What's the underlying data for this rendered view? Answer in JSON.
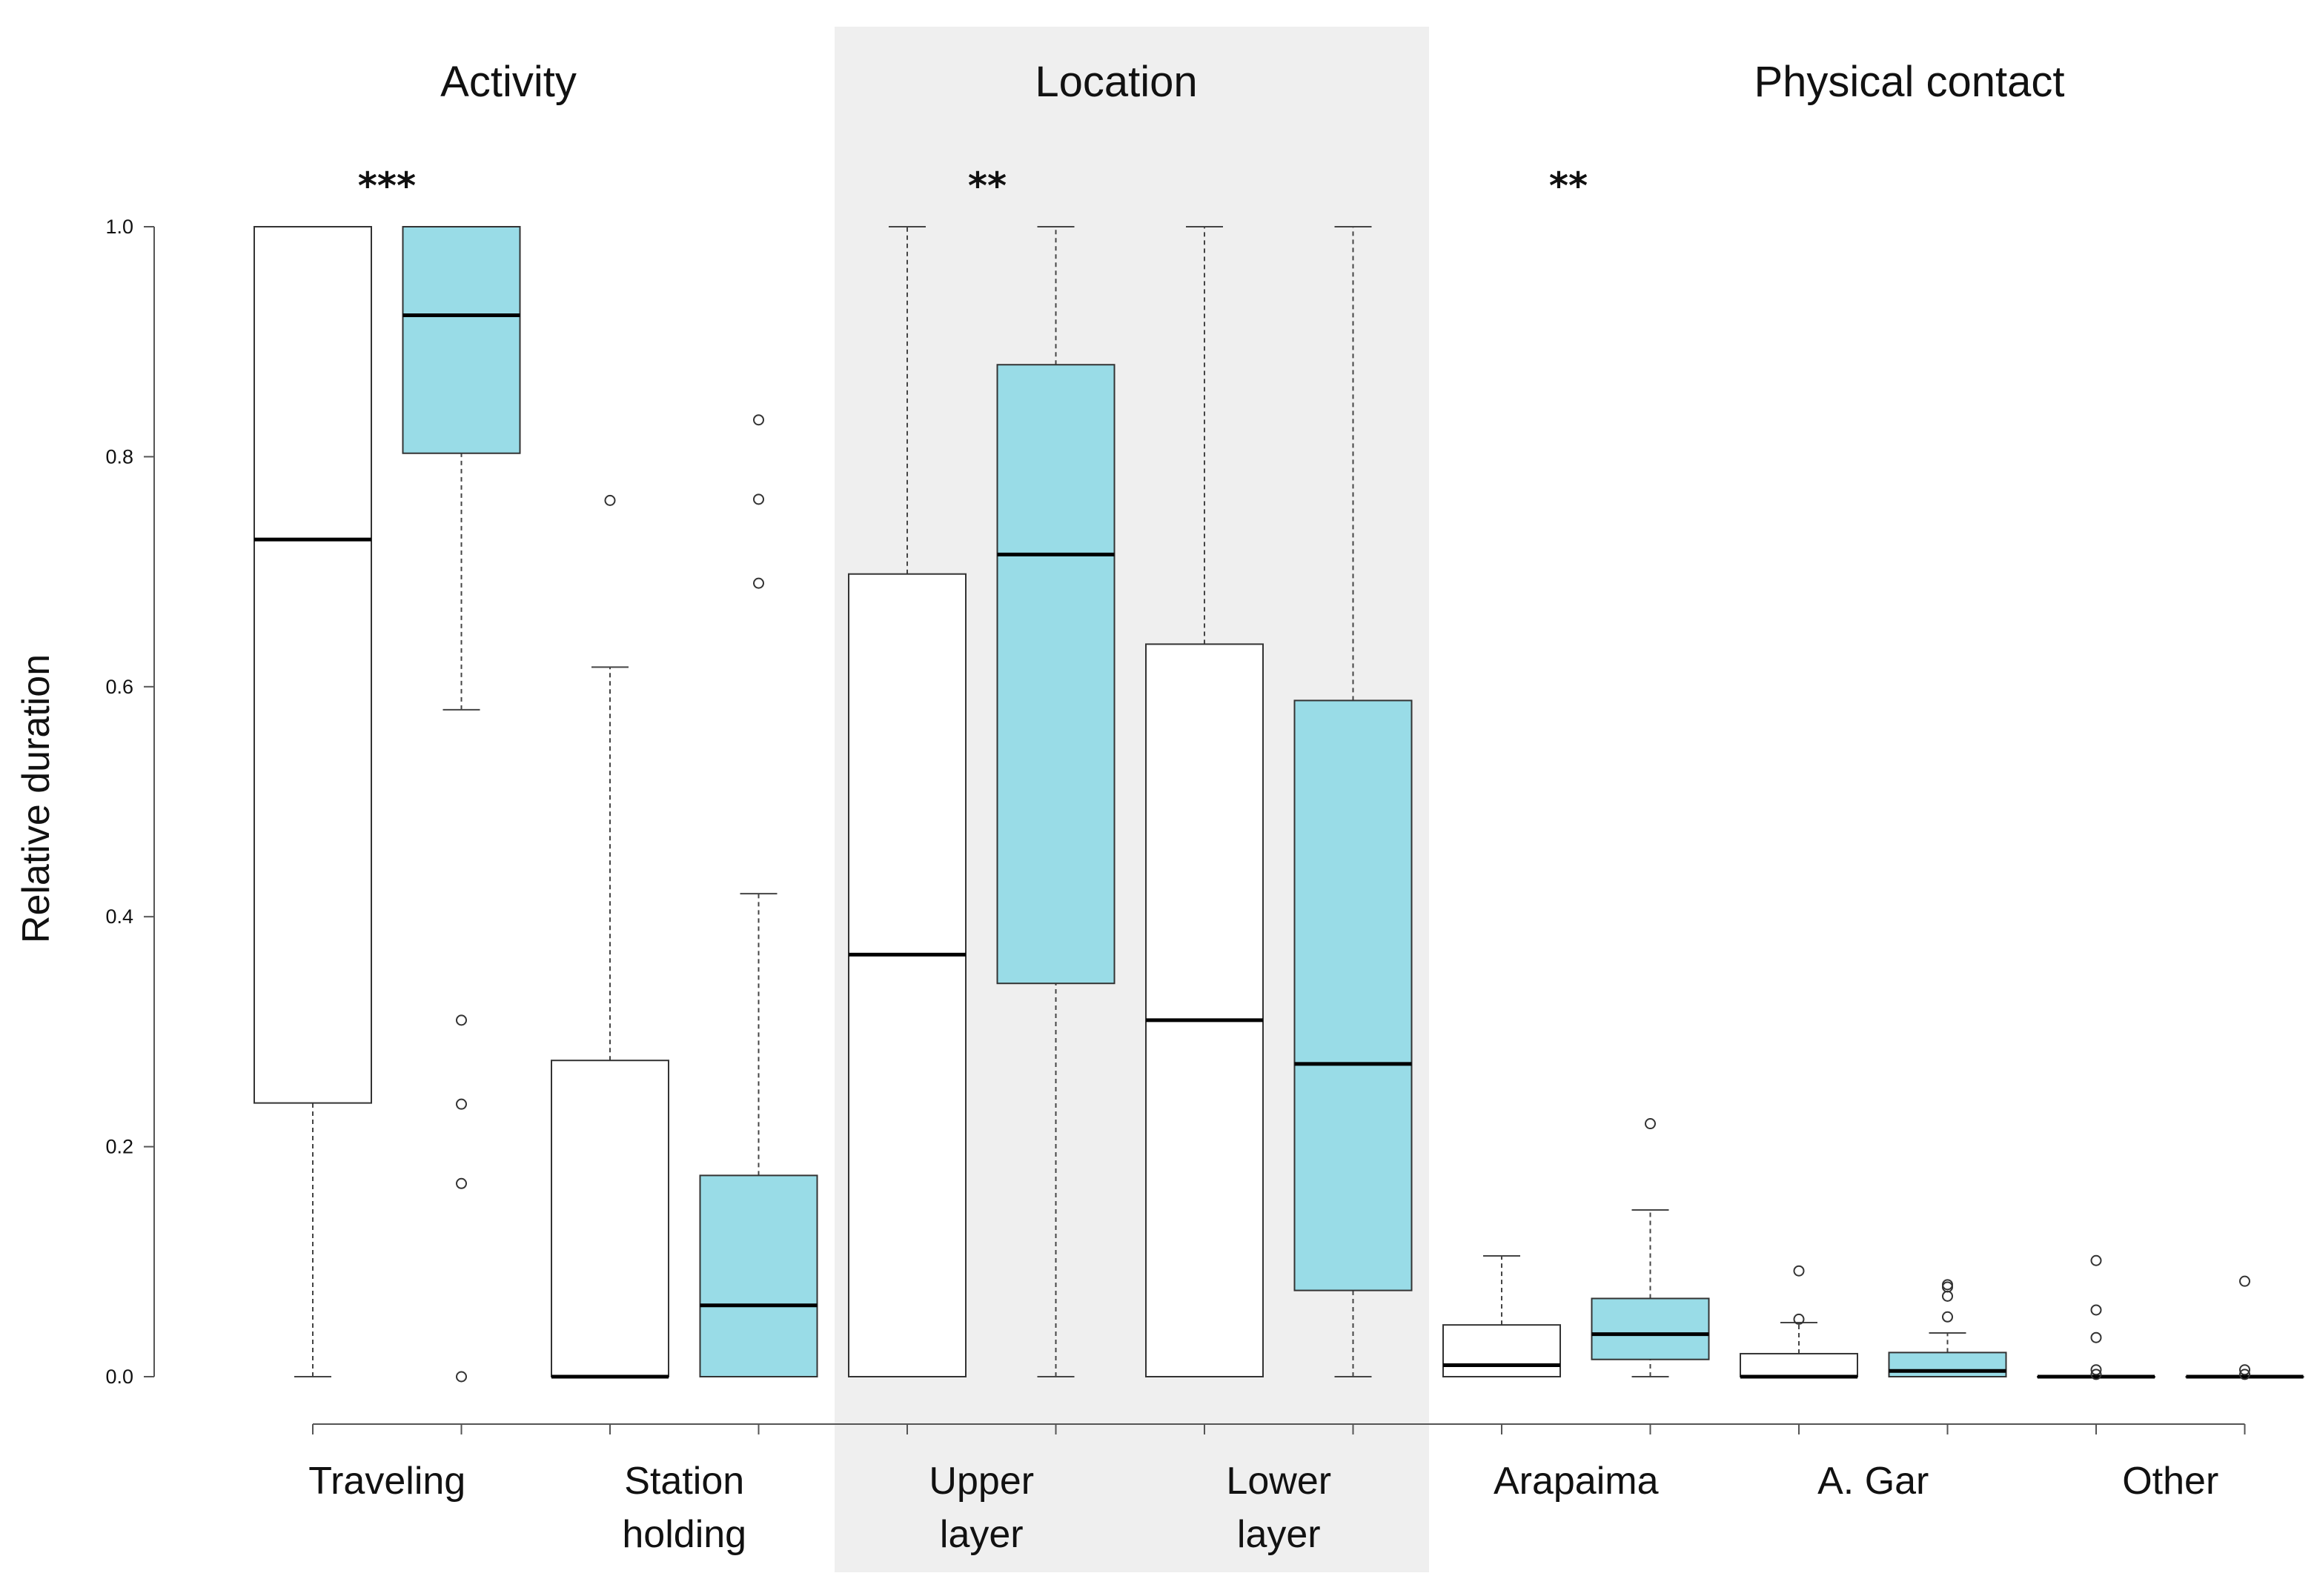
{
  "chart_data": {
    "type": "box",
    "ylabel": "Relative duration",
    "ylim": [
      0,
      1.0
    ],
    "yticks": [
      "0.0",
      "0.2",
      "0.4",
      "0.6",
      "0.8",
      "1.0"
    ],
    "sections": [
      {
        "title": "Activity",
        "significance": "***",
        "highlighted": false
      },
      {
        "title": "Location",
        "significance": "**",
        "highlighted": true
      },
      {
        "title": "Physical contact",
        "significance": "**",
        "highlighted": false
      }
    ],
    "categories": [
      {
        "lines": [
          "Traveling"
        ]
      },
      {
        "lines": [
          "Station",
          "holding"
        ]
      },
      {
        "lines": [
          "Upper",
          "layer"
        ]
      },
      {
        "lines": [
          "Lower",
          "layer"
        ]
      },
      {
        "lines": [
          "Arapaima"
        ]
      },
      {
        "lines": [
          "A. Gar"
        ]
      },
      {
        "lines": [
          "Other"
        ]
      }
    ],
    "group_colors": [
      "#ffffff",
      "#99dce7"
    ],
    "boxes": [
      {
        "category": 0,
        "group": 0,
        "min": 0.0,
        "q1": 0.238,
        "median": 0.728,
        "q3": 1.0,
        "max": 1.0,
        "outliers": []
      },
      {
        "category": 0,
        "group": 1,
        "min": 0.58,
        "q1": 0.803,
        "median": 0.923,
        "q3": 1.0,
        "max": 1.0,
        "outliers": [
          0.31,
          0.237,
          0.168,
          0.0
        ]
      },
      {
        "category": 1,
        "group": 0,
        "min": 0.0,
        "q1": 0.0,
        "median": 0.0,
        "q3": 0.275,
        "max": 0.617,
        "outliers": [
          0.762
        ]
      },
      {
        "category": 1,
        "group": 1,
        "min": 0.0,
        "q1": 0.0,
        "median": 0.062,
        "q3": 0.175,
        "max": 0.42,
        "outliers": [
          0.69,
          0.763,
          0.832
        ]
      },
      {
        "category": 2,
        "group": 0,
        "min": 0.0,
        "q1": 0.0,
        "median": 0.367,
        "q3": 0.698,
        "max": 1.0,
        "outliers": []
      },
      {
        "category": 2,
        "group": 1,
        "min": 0.0,
        "q1": 0.342,
        "median": 0.715,
        "q3": 0.88,
        "max": 1.0,
        "outliers": []
      },
      {
        "category": 3,
        "group": 0,
        "min": 0.0,
        "q1": 0.0,
        "median": 0.31,
        "q3": 0.637,
        "max": 1.0,
        "outliers": []
      },
      {
        "category": 3,
        "group": 1,
        "min": 0.0,
        "q1": 0.075,
        "median": 0.272,
        "q3": 0.588,
        "max": 1.0,
        "outliers": []
      },
      {
        "category": 4,
        "group": 0,
        "min": 0.0,
        "q1": 0.0,
        "median": 0.01,
        "q3": 0.045,
        "max": 0.105,
        "outliers": []
      },
      {
        "category": 4,
        "group": 1,
        "min": 0.0,
        "q1": 0.015,
        "median": 0.037,
        "q3": 0.068,
        "max": 0.145,
        "outliers": [
          0.22
        ]
      },
      {
        "category": 5,
        "group": 0,
        "min": 0.0,
        "q1": 0.0,
        "median": 0.0,
        "q3": 0.02,
        "max": 0.047,
        "outliers": [
          0.05,
          0.092
        ]
      },
      {
        "category": 5,
        "group": 1,
        "min": 0.0,
        "q1": 0.0,
        "median": 0.005,
        "q3": 0.021,
        "max": 0.038,
        "outliers": [
          0.052,
          0.07,
          0.078,
          0.08
        ]
      },
      {
        "category": 6,
        "group": 0,
        "min": 0.0,
        "q1": 0.0,
        "median": 0.0,
        "q3": 0.0,
        "max": 0.0,
        "outliers": [
          0.002,
          0.006,
          0.034,
          0.058,
          0.101
        ]
      },
      {
        "category": 6,
        "group": 1,
        "min": 0.0,
        "q1": 0.0,
        "median": 0.0,
        "q3": 0.0,
        "max": 0.0,
        "outliers": [
          0.002,
          0.006,
          0.083
        ]
      }
    ]
  }
}
